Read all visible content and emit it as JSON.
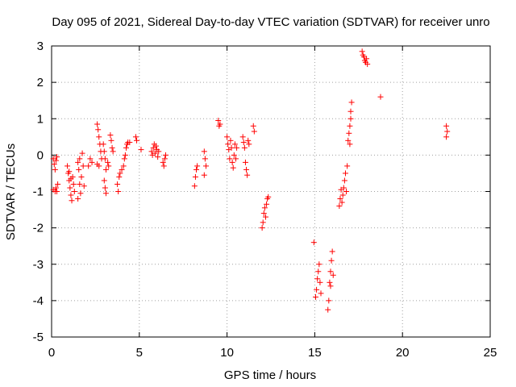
{
  "chart_data": {
    "type": "scatter",
    "title": "Day 095 of 2021, Sidereal Day-to-day VTEC variation (SDTVAR) for receiver unro",
    "xlabel": "GPS time / hours",
    "ylabel": "SDTVAR / TECUs",
    "xlim": [
      0,
      25
    ],
    "ylim": [
      -5,
      3
    ],
    "grid": true,
    "marker": "+",
    "series_color": "#ff0000",
    "xticks": [
      0,
      5,
      10,
      15,
      20,
      25
    ],
    "yticks": [
      -5,
      -4,
      -3,
      -2,
      -1,
      0,
      1,
      2,
      3
    ],
    "series": [
      {
        "name": "SDTVAR",
        "points": [
          [
            0.1,
            -0.1
          ],
          [
            0.15,
            -0.25
          ],
          [
            0.2,
            -0.4
          ],
          [
            0.25,
            -0.15
          ],
          [
            0.3,
            -0.05
          ],
          [
            0.1,
            -0.95
          ],
          [
            0.2,
            -1.0
          ],
          [
            0.25,
            -0.9
          ],
          [
            0.3,
            -1.0
          ],
          [
            0.35,
            -0.8
          ],
          [
            0.9,
            -0.3
          ],
          [
            0.95,
            -0.5
          ],
          [
            1.0,
            -0.7
          ],
          [
            1.05,
            -0.9
          ],
          [
            1.1,
            -1.1
          ],
          [
            1.15,
            -1.25
          ],
          [
            1.2,
            -0.6
          ],
          [
            1.25,
            -0.8
          ],
          [
            1.3,
            -1.0
          ],
          [
            1.0,
            -0.45
          ],
          [
            1.1,
            -0.65
          ],
          [
            1.5,
            -0.2
          ],
          [
            1.55,
            -0.4
          ],
          [
            1.6,
            -0.1
          ],
          [
            1.6,
            -0.8
          ],
          [
            1.65,
            -1.05
          ],
          [
            1.7,
            -0.6
          ],
          [
            1.75,
            0.05
          ],
          [
            1.8,
            -0.3
          ],
          [
            1.85,
            -0.85
          ],
          [
            1.5,
            -1.2
          ],
          [
            2.1,
            -0.3
          ],
          [
            2.2,
            -0.1
          ],
          [
            2.3,
            -0.2
          ],
          [
            2.6,
            0.85
          ],
          [
            2.65,
            0.7
          ],
          [
            2.7,
            0.5
          ],
          [
            2.75,
            0.3
          ],
          [
            2.8,
            0.1
          ],
          [
            2.85,
            -0.1
          ],
          [
            2.7,
            -0.3
          ],
          [
            2.6,
            -0.25
          ],
          [
            2.95,
            0.3
          ],
          [
            3.0,
            0.1
          ],
          [
            3.05,
            -0.1
          ],
          [
            3.1,
            -0.4
          ],
          [
            3.0,
            -0.7
          ],
          [
            3.05,
            -0.9
          ],
          [
            3.1,
            -1.05
          ],
          [
            3.2,
            -0.2
          ],
          [
            3.25,
            -0.3
          ],
          [
            3.35,
            0.55
          ],
          [
            3.4,
            0.4
          ],
          [
            3.45,
            0.2
          ],
          [
            3.5,
            0.1
          ],
          [
            3.75,
            -0.8
          ],
          [
            3.8,
            -1.0
          ],
          [
            3.85,
            -0.6
          ],
          [
            3.9,
            -0.5
          ],
          [
            4.0,
            -0.4
          ],
          [
            4.1,
            -0.3
          ],
          [
            4.15,
            -0.1
          ],
          [
            4.2,
            0.0
          ],
          [
            4.25,
            0.2
          ],
          [
            4.3,
            0.3
          ],
          [
            4.35,
            0.35
          ],
          [
            4.45,
            0.35
          ],
          [
            4.8,
            0.5
          ],
          [
            4.85,
            0.4
          ],
          [
            5.1,
            0.15
          ],
          [
            5.7,
            0.1
          ],
          [
            5.75,
            0.0
          ],
          [
            5.8,
            0.2
          ],
          [
            5.85,
            0.3
          ],
          [
            5.9,
            0.05
          ],
          [
            5.95,
            0.25
          ],
          [
            6.0,
            0.15
          ],
          [
            6.05,
            -0.05
          ],
          [
            6.1,
            0.1
          ],
          [
            6.35,
            -0.2
          ],
          [
            6.4,
            -0.3
          ],
          [
            6.45,
            -0.1
          ],
          [
            6.5,
            0.0
          ],
          [
            8.15,
            -0.85
          ],
          [
            8.2,
            -0.6
          ],
          [
            8.25,
            -0.4
          ],
          [
            8.3,
            -0.3
          ],
          [
            8.7,
            0.1
          ],
          [
            8.75,
            -0.1
          ],
          [
            8.8,
            -0.3
          ],
          [
            8.7,
            -0.55
          ],
          [
            9.5,
            0.95
          ],
          [
            9.55,
            0.8
          ],
          [
            9.6,
            0.85
          ],
          [
            10.0,
            0.5
          ],
          [
            10.05,
            0.3
          ],
          [
            10.1,
            0.15
          ],
          [
            10.15,
            -0.1
          ],
          [
            10.2,
            0.4
          ],
          [
            10.25,
            0.2
          ],
          [
            10.3,
            -0.2
          ],
          [
            10.35,
            -0.35
          ],
          [
            10.4,
            0.0
          ],
          [
            10.45,
            0.3
          ],
          [
            10.5,
            -0.1
          ],
          [
            10.55,
            0.2
          ],
          [
            10.9,
            0.5
          ],
          [
            10.95,
            0.35
          ],
          [
            11.0,
            0.2
          ],
          [
            11.05,
            -0.2
          ],
          [
            11.1,
            -0.4
          ],
          [
            11.15,
            -0.55
          ],
          [
            11.2,
            0.4
          ],
          [
            11.25,
            0.3
          ],
          [
            11.5,
            0.8
          ],
          [
            11.55,
            0.65
          ],
          [
            12.0,
            -2.0
          ],
          [
            12.05,
            -1.85
          ],
          [
            12.1,
            -1.6
          ],
          [
            12.15,
            -1.45
          ],
          [
            12.2,
            -1.7
          ],
          [
            12.25,
            -1.35
          ],
          [
            12.3,
            -1.2
          ],
          [
            12.35,
            -1.15
          ],
          [
            14.95,
            -2.4
          ],
          [
            15.05,
            -3.9
          ],
          [
            15.1,
            -3.7
          ],
          [
            15.15,
            -3.4
          ],
          [
            15.2,
            -3.2
          ],
          [
            15.25,
            -3.0
          ],
          [
            15.3,
            -3.5
          ],
          [
            15.35,
            -3.8
          ],
          [
            15.75,
            -4.25
          ],
          [
            15.8,
            -4.0
          ],
          [
            15.85,
            -3.5
          ],
          [
            15.9,
            -3.2
          ],
          [
            15.95,
            -2.9
          ],
          [
            16.0,
            -2.65
          ],
          [
            15.9,
            -3.6
          ],
          [
            16.05,
            -3.3
          ],
          [
            16.4,
            -1.4
          ],
          [
            16.45,
            -1.2
          ],
          [
            16.5,
            -0.95
          ],
          [
            16.55,
            -1.3
          ],
          [
            16.6,
            -1.1
          ],
          [
            16.65,
            -0.9
          ],
          [
            16.7,
            -0.7
          ],
          [
            16.75,
            -0.5
          ],
          [
            16.8,
            -1.0
          ],
          [
            16.85,
            -0.3
          ],
          [
            16.9,
            0.4
          ],
          [
            16.95,
            0.6
          ],
          [
            17.0,
            0.8
          ],
          [
            17.05,
            1.0
          ],
          [
            17.1,
            1.45
          ],
          [
            17.0,
            0.3
          ],
          [
            17.05,
            1.2
          ],
          [
            17.7,
            2.85
          ],
          [
            17.75,
            2.75
          ],
          [
            17.8,
            2.7
          ],
          [
            17.85,
            2.6
          ],
          [
            17.9,
            2.55
          ],
          [
            17.95,
            2.65
          ],
          [
            18.0,
            2.5
          ],
          [
            18.75,
            1.6
          ],
          [
            22.5,
            0.8
          ],
          [
            22.55,
            0.65
          ],
          [
            22.5,
            0.5
          ]
        ]
      }
    ]
  }
}
